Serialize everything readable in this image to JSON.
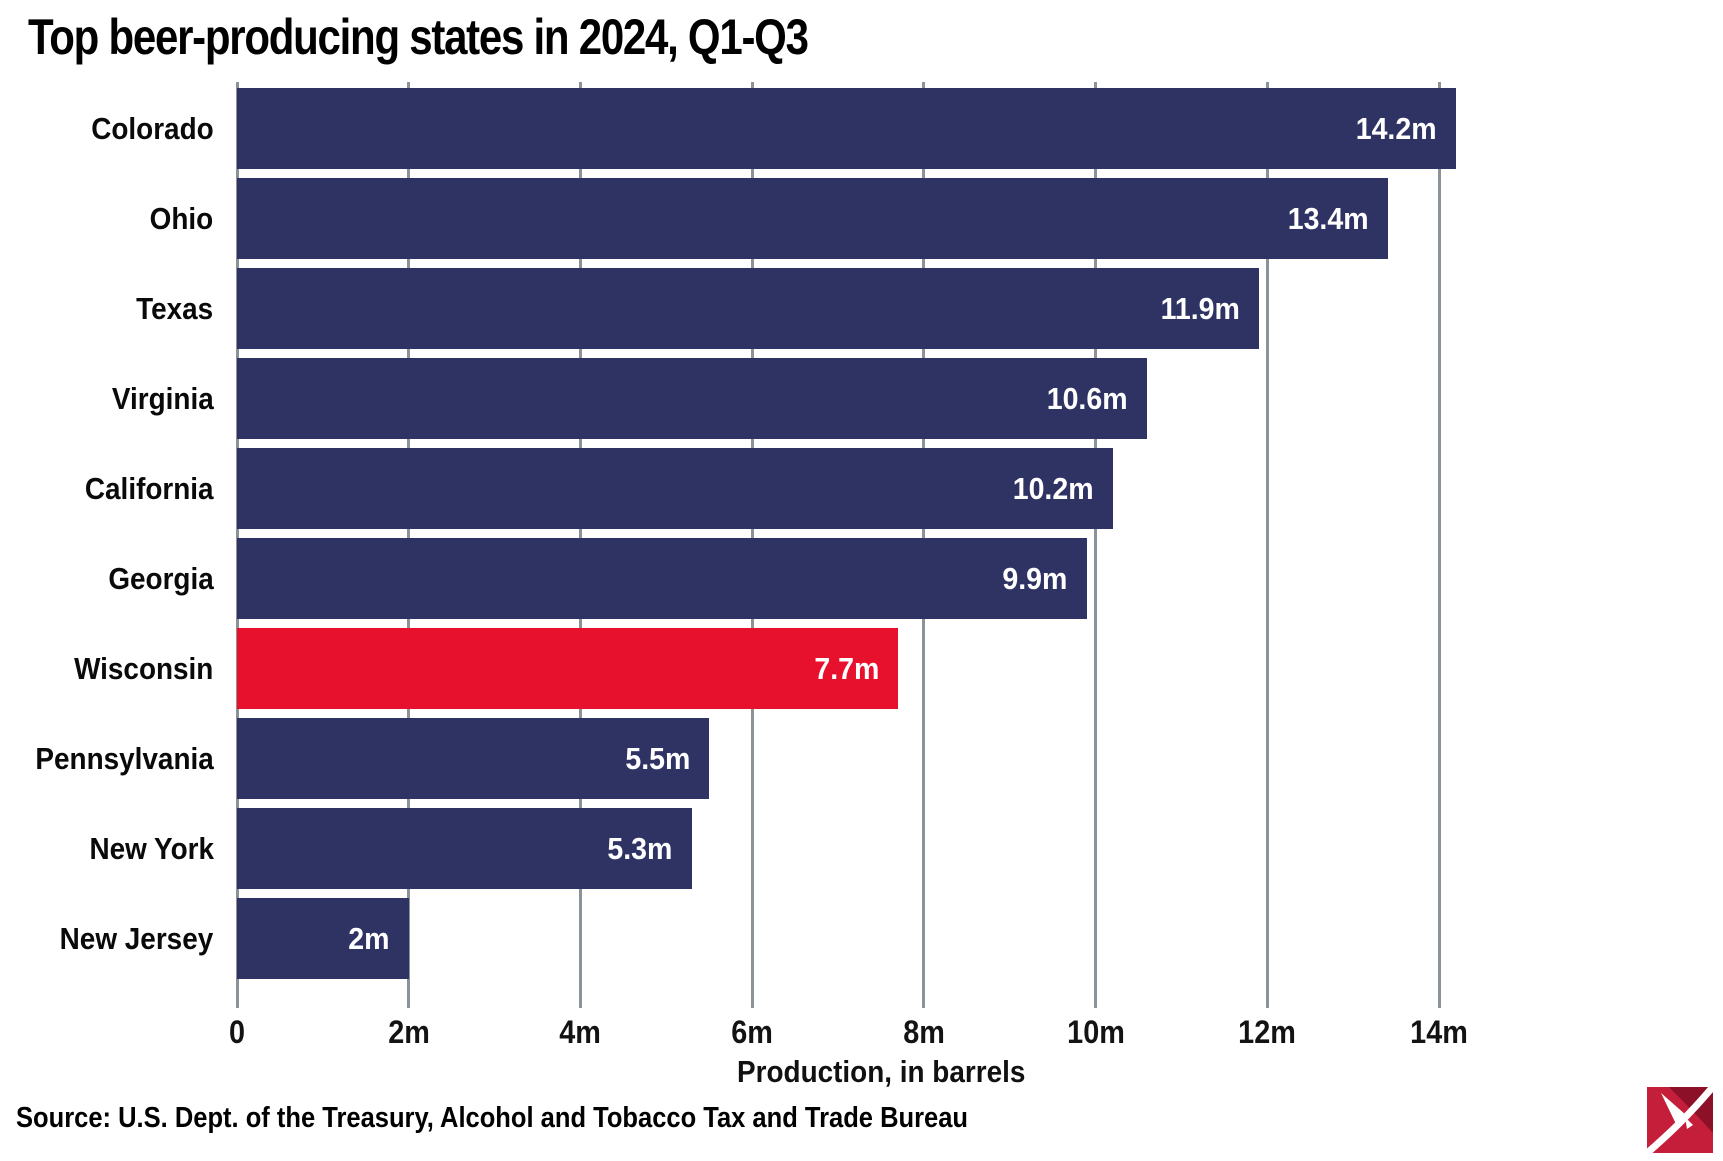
{
  "title": "Top beer-producing states in 2024, Q1-Q3",
  "colors": {
    "bar": "#2f3364",
    "highlight": "#e8112d",
    "gridline": "#8b9399",
    "value_label": "#ffffff",
    "text": "#000000",
    "logo_red": "#c41e3a",
    "logo_dark_red": "#8c1128"
  },
  "chart_data": {
    "type": "bar",
    "orientation": "horizontal",
    "title": "Top beer-producing states in 2024, Q1-Q3",
    "categories": [
      "Colorado",
      "Ohio",
      "Texas",
      "Virginia",
      "California",
      "Georgia",
      "Wisconsin",
      "Pennsylvania",
      "New York",
      "New Jersey"
    ],
    "values": [
      14.2,
      13.4,
      11.9,
      10.6,
      10.2,
      9.9,
      7.7,
      5.5,
      5.3,
      2
    ],
    "value_labels": [
      "14.2m",
      "13.4m",
      "11.9m",
      "10.6m",
      "10.2m",
      "9.9m",
      "7.7m",
      "5.5m",
      "5.3m",
      "2m"
    ],
    "highlight_index": 6,
    "highlight_category": "Wisconsin",
    "unit": "millions of barrels",
    "xlabel": "Production, in barrels",
    "xticks": [
      0,
      2,
      4,
      6,
      8,
      10,
      12,
      14
    ],
    "xtick_labels": [
      "0",
      "2m",
      "4m",
      "6m",
      "8m",
      "10m",
      "12m",
      "14m"
    ],
    "xlim": [
      0,
      15
    ],
    "grid": true,
    "legend": "none",
    "value_label_position": "inside-end"
  },
  "footer": {
    "source": "Source: U.S. Dept. of the Treasury, Alcohol and Tobacco Tax and Trade Bureau",
    "logo_name": "lee-enterprises-logo"
  }
}
